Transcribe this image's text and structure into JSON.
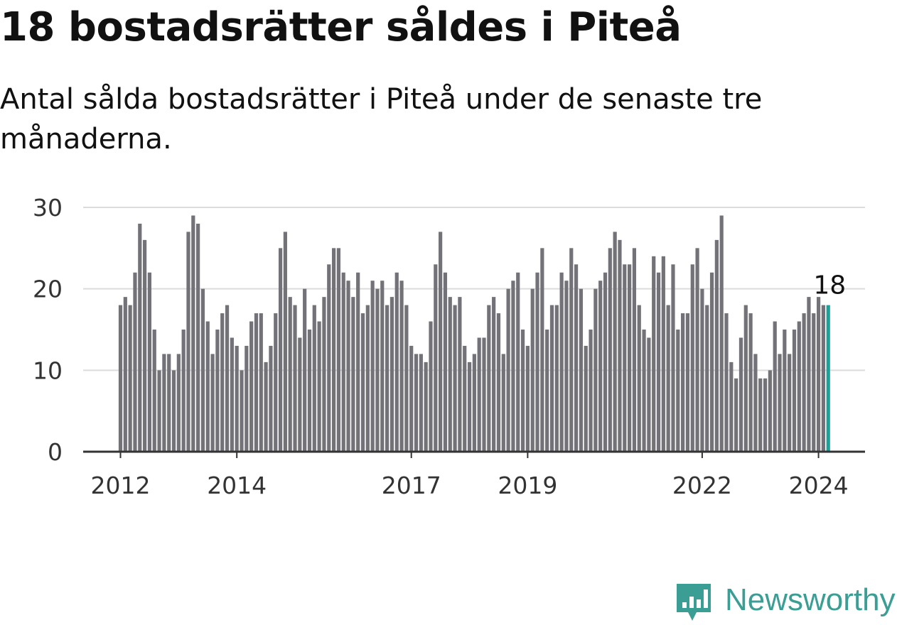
{
  "title": "18 bostadsrätter såldes i Piteå",
  "subtitle": "Antal sålda bostadsrätter i Piteå under de senaste tre månaderna.",
  "brand": {
    "name": "Newsworthy",
    "icon": "newsworthy-logo-icon",
    "color": "#3a9e94"
  },
  "chart_data": {
    "type": "bar",
    "title": "18 bostadsrätter såldes i Piteå",
    "xlabel": "",
    "ylabel": "",
    "ylim": [
      0,
      30
    ],
    "yticks": [
      "0",
      "10",
      "20",
      "30"
    ],
    "x_tick_labels": [
      {
        "label": "2012",
        "index": 0
      },
      {
        "label": "2014",
        "index": 24
      },
      {
        "label": "2017",
        "index": 60
      },
      {
        "label": "2019",
        "index": 84
      },
      {
        "label": "2022",
        "index": 120
      },
      {
        "label": "2024",
        "index": 144
      }
    ],
    "last_value_label": "18",
    "bar_color": "#737278",
    "highlight_color": "#18a29a",
    "grid": true,
    "values": [
      18,
      19,
      18,
      22,
      28,
      26,
      22,
      15,
      10,
      12,
      12,
      10,
      12,
      15,
      27,
      29,
      28,
      20,
      16,
      12,
      15,
      17,
      18,
      14,
      13,
      10,
      13,
      16,
      17,
      17,
      11,
      13,
      17,
      25,
      27,
      19,
      18,
      14,
      20,
      15,
      18,
      16,
      19,
      23,
      25,
      25,
      22,
      21,
      19,
      22,
      17,
      18,
      21,
      20,
      21,
      18,
      19,
      22,
      21,
      18,
      13,
      12,
      12,
      11,
      16,
      23,
      27,
      22,
      19,
      18,
      19,
      13,
      11,
      12,
      14,
      14,
      18,
      19,
      17,
      12,
      20,
      21,
      22,
      15,
      13,
      20,
      22,
      25,
      15,
      18,
      18,
      22,
      21,
      25,
      23,
      20,
      13,
      15,
      20,
      21,
      22,
      25,
      27,
      26,
      23,
      23,
      25,
      18,
      15,
      14,
      24,
      22,
      24,
      18,
      23,
      15,
      17,
      17,
      23,
      25,
      20,
      18,
      22,
      26,
      29,
      17,
      11,
      9,
      14,
      18,
      17,
      12,
      9,
      9,
      10,
      16,
      12,
      15,
      12,
      15,
      16,
      17,
      19,
      17,
      19,
      18,
      18
    ]
  }
}
